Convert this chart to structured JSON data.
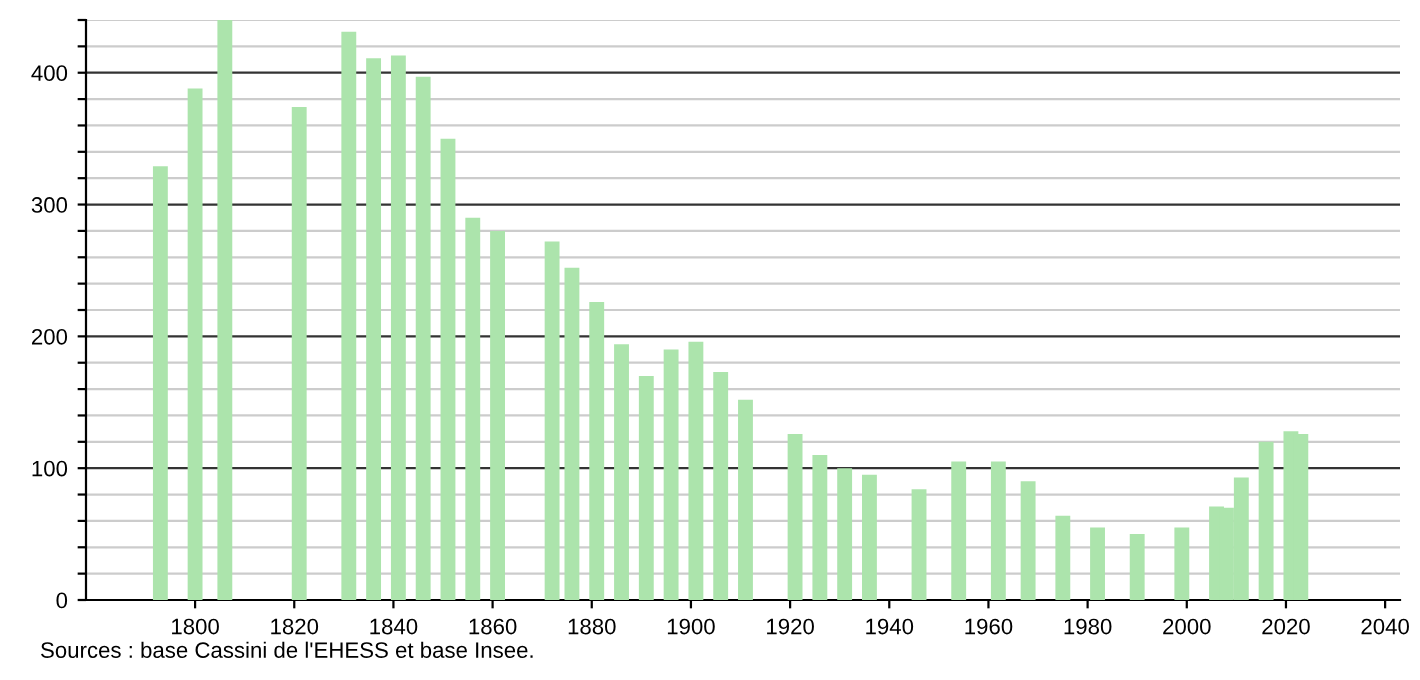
{
  "chart_data": {
    "type": "bar",
    "color": "#ace4ac",
    "x": [
      1793,
      1800,
      1806,
      1821,
      1831,
      1836,
      1841,
      1846,
      1851,
      1856,
      1861,
      1872,
      1876,
      1881,
      1886,
      1891,
      1896,
      1901,
      1906,
      1911,
      1921,
      1926,
      1931,
      1936,
      1946,
      1954,
      1962,
      1968,
      1975,
      1982,
      1990,
      1999,
      2006,
      2008,
      2011,
      2016,
      2021,
      2023
    ],
    "values": [
      329,
      388,
      440,
      374,
      431,
      411,
      413,
      397,
      350,
      290,
      280,
      272,
      252,
      226,
      194,
      170,
      190,
      196,
      173,
      152,
      126,
      110,
      100,
      95,
      84,
      105,
      105,
      90,
      64,
      55,
      50,
      55,
      71,
      70,
      93,
      120,
      128,
      126
    ],
    "xlim": [
      1778,
      2043
    ],
    "xticks": [
      1800,
      1820,
      1840,
      1860,
      1880,
      1900,
      1920,
      1940,
      1960,
      1980,
      2000,
      2020,
      2040
    ],
    "ylim": [
      0,
      440
    ],
    "yticks": [
      0,
      {
        "value": 20,
        "label": null
      },
      {
        "value": 40,
        "label": null
      },
      {
        "value": 60,
        "label": null
      },
      {
        "value": 80,
        "label": null
      },
      100,
      {
        "value": 120,
        "label": null
      },
      {
        "value": 140,
        "label": null
      },
      {
        "value": 160,
        "label": null
      },
      {
        "value": 180,
        "label": null
      },
      200,
      {
        "value": 220,
        "label": null
      },
      {
        "value": 240,
        "label": null
      },
      {
        "value": 260,
        "label": null
      },
      {
        "value": 280,
        "label": null
      },
      300,
      {
        "value": 320,
        "label": null
      },
      {
        "value": 340,
        "label": null
      },
      {
        "value": 360,
        "label": null
      },
      {
        "value": 380,
        "label": null
      },
      400,
      {
        "value": 420,
        "label": null
      },
      {
        "value": 440,
        "label": null
      }
    ],
    "grid": "y",
    "annotations": [
      "Sources : base Cassini de l'EHESS et base Insee."
    ]
  }
}
